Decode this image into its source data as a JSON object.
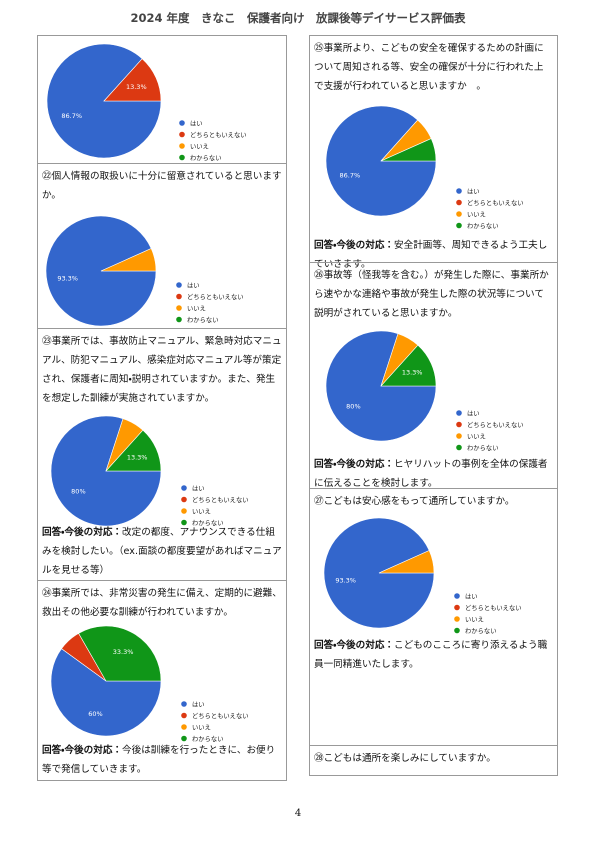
{
  "title": "2024 年度　きなこ　保護者向け　放課後等デイサービス評価表",
  "page_number": "4",
  "sections": [
    {
      "chart_data": {
        "type": "pie",
        "categories": [
          "はい",
          "どちらともいえない",
          "いいえ",
          "わからない"
        ],
        "colors": [
          "#3366cc",
          "#dc3912",
          "#ff9900",
          "#109618"
        ],
        "values": [
          86.7,
          13.3,
          0,
          0
        ],
        "value_labels": [
          "86.7%",
          "13.3%",
          null,
          null
        ]
      }
    },
    {
      "question": "㉒個人情報の取扱いに十分に留意されていると思いますか。",
      "chart_data": {
        "type": "pie",
        "categories": [
          "はい",
          "どちらともいえない",
          "いいえ",
          "わからない"
        ],
        "colors": [
          "#3366cc",
          "#dc3912",
          "#ff9900",
          "#109618"
        ],
        "values": [
          93.3,
          0,
          6.7,
          0
        ],
        "value_labels": [
          "93.3%",
          null,
          null,
          null
        ]
      }
    },
    {
      "question": "㉓事業所では、事故防止マニュアル、緊急時対応マニュアル、防犯マニュアル、感染症対応マニュアル等が策定され、保護者に周知・説明されていますか。また、発生を想定した訓練が実施されていますか。",
      "chart_data": {
        "type": "pie",
        "categories": [
          "はい",
          "どちらともいえない",
          "いいえ",
          "わからない"
        ],
        "colors": [
          "#3366cc",
          "#dc3912",
          "#ff9900",
          "#109618"
        ],
        "values": [
          80,
          0,
          6.7,
          13.3
        ],
        "value_labels": [
          "80%",
          null,
          null,
          "13.3%"
        ]
      },
      "answer_label": "回答・今後の対応：",
      "answer": "改定の都度、アナウンスできる仕組みを検討したい。（ex.面談の都度要望があればマニュアルを見せる等）"
    },
    {
      "question": "㉔事業所では、非常災害の発生に備え、定期的に避難、救出その他必要な訓練が行われていますか。",
      "chart_data": {
        "type": "pie",
        "categories": [
          "はい",
          "どちらともいえない",
          "いいえ",
          "わからない"
        ],
        "colors": [
          "#3366cc",
          "#dc3912",
          "#ff9900",
          "#109618"
        ],
        "values": [
          60,
          6.7,
          0,
          33.3
        ],
        "value_labels": [
          "60%",
          null,
          null,
          "33.3%"
        ]
      },
      "answer_label": "回答・今後の対応：",
      "answer": "今後は訓練を行ったときに、お便り等で発信していきます。"
    },
    {
      "question": "㉕事業所より、こどもの安全を確保するための計画について周知される等、安全の確保が十分に行われた上で支援が行われていると思いますか　。",
      "chart_data": {
        "type": "pie",
        "categories": [
          "はい",
          "どちらともいえない",
          "いいえ",
          "わからない"
        ],
        "colors": [
          "#3366cc",
          "#dc3912",
          "#ff9900",
          "#109618"
        ],
        "values": [
          86.7,
          0,
          6.7,
          6.7
        ],
        "value_labels": [
          "86.7%",
          null,
          null,
          null
        ]
      },
      "answer_label": "回答・今後の対応：",
      "answer": "安全計画等、周知できるよう工夫していきます。"
    },
    {
      "question": "㉖事故等（怪我等を含む。）が発生した際に、事業所から速やかな連絡や事故が発生した際の状況等について説明がされていると思いますか。",
      "chart_data": {
        "type": "pie",
        "categories": [
          "はい",
          "どちらともいえない",
          "いいえ",
          "わからない"
        ],
        "colors": [
          "#3366cc",
          "#dc3912",
          "#ff9900",
          "#109618"
        ],
        "values": [
          80,
          0,
          6.7,
          13.3
        ],
        "value_labels": [
          "80%",
          null,
          null,
          "13.3%"
        ]
      },
      "answer_label": "回答・今後の対応：",
      "answer": "ヒヤリハットの事例を全体の保護者に伝えることを検討します。"
    },
    {
      "question": "㉗こどもは安心感をもって通所していますか。",
      "chart_data": {
        "type": "pie",
        "categories": [
          "はい",
          "どちらともいえない",
          "いいえ",
          "わからない"
        ],
        "colors": [
          "#3366cc",
          "#dc3912",
          "#ff9900",
          "#109618"
        ],
        "values": [
          93.3,
          0,
          6.7,
          0
        ],
        "value_labels": [
          "93.3%",
          null,
          null,
          null
        ]
      },
      "answer_label": "回答・今後の対応：",
      "answer": "こどものこころに寄り添えるよう職員一同精進いたします。"
    },
    {
      "question": "㉘こどもは通所を楽しみにしていますか。"
    }
  ]
}
